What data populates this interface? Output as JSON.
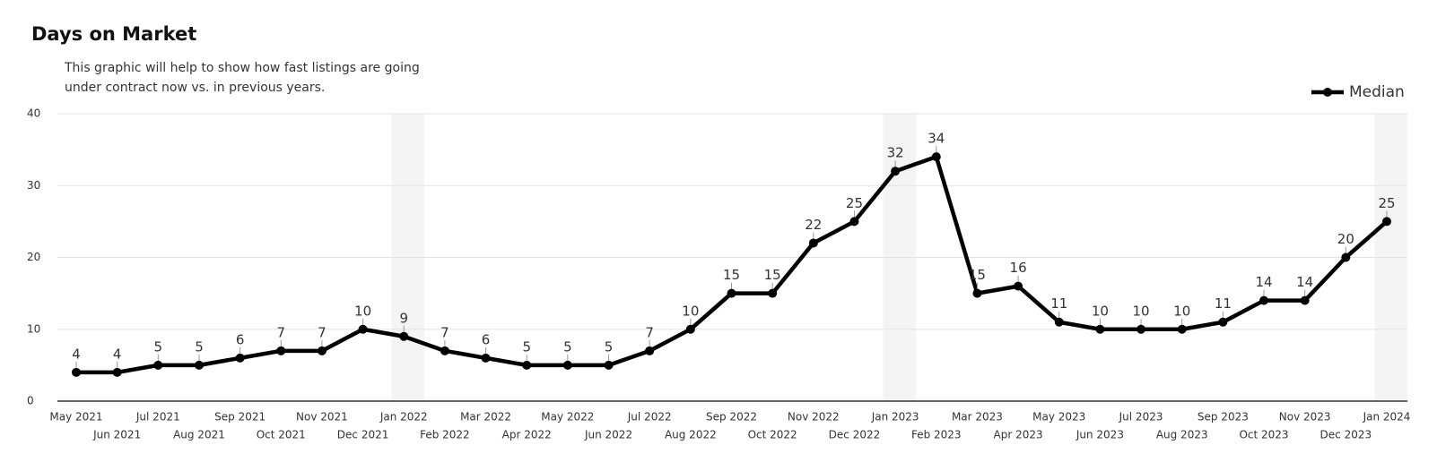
{
  "chart_data": {
    "type": "line",
    "title": "Days on Market",
    "subtitle": "This graphic will help to show how fast listings are going under contract now vs. in previous years.",
    "categories": [
      "May 2021",
      "Jun 2021",
      "Jul 2021",
      "Aug 2021",
      "Sep 2021",
      "Oct 2021",
      "Nov 2021",
      "Dec 2021",
      "Jan 2022",
      "Feb 2022",
      "Mar 2022",
      "Apr 2022",
      "May 2022",
      "Jun 2022",
      "Jul 2022",
      "Aug 2022",
      "Sep 2022",
      "Oct 2022",
      "Nov 2022",
      "Dec 2022",
      "Jan 2023",
      "Feb 2023",
      "Mar 2023",
      "Apr 2023",
      "May 2023",
      "Jun 2023",
      "Jul 2023",
      "Aug 2023",
      "Sep 2023",
      "Oct 2023",
      "Nov 2023",
      "Dec 2023",
      "Jan 2024"
    ],
    "series": [
      {
        "name": "Median",
        "color": "#000000",
        "values": [
          4,
          4,
          5,
          5,
          6,
          7,
          7,
          10,
          9,
          7,
          6,
          5,
          5,
          5,
          7,
          10,
          15,
          15,
          22,
          25,
          32,
          34,
          15,
          16,
          11,
          10,
          10,
          10,
          11,
          14,
          14,
          20,
          25
        ]
      }
    ],
    "ylim": [
      0,
      40
    ],
    "yticks": [
      0,
      10,
      20,
      30,
      40
    ],
    "grid": true,
    "legend": "top-right",
    "data_labels": true
  }
}
